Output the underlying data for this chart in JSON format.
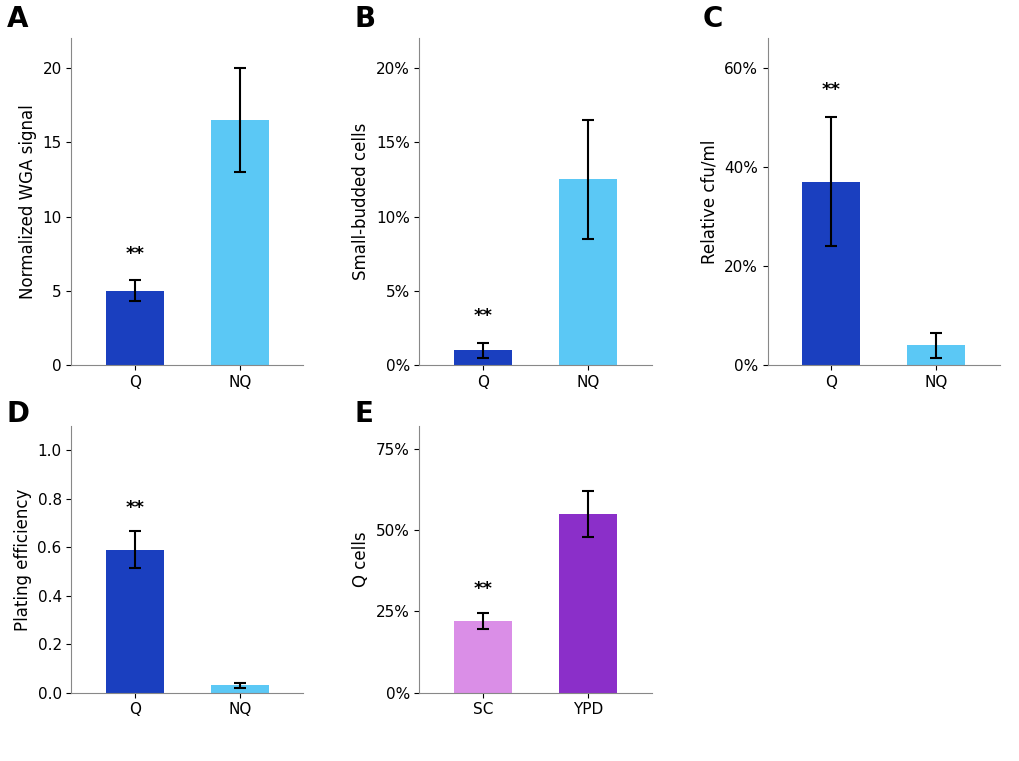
{
  "panel_A": {
    "title": "A",
    "categories": [
      "Q",
      "NQ"
    ],
    "values": [
      5.0,
      16.5
    ],
    "errors": [
      0.7,
      3.5
    ],
    "colors": [
      "#1a3fbf",
      "#5bc8f5"
    ],
    "ylabel": "Normalized WGA signal",
    "ylim": [
      0,
      22
    ],
    "yticks": [
      0,
      5,
      10,
      15,
      20
    ],
    "yticklabels": [
      "0",
      "5",
      "10",
      "15",
      "20"
    ],
    "star_bar": 0
  },
  "panel_B": {
    "title": "B",
    "categories": [
      "Q",
      "NQ"
    ],
    "values": [
      0.01,
      0.125
    ],
    "errors": [
      0.005,
      0.04
    ],
    "colors": [
      "#1a3fbf",
      "#5bc8f5"
    ],
    "ylabel": "Small-budded cells",
    "ylim": [
      0,
      0.22
    ],
    "yticks": [
      0.0,
      0.05,
      0.1,
      0.15,
      0.2
    ],
    "yticklabels": [
      "0%",
      "5%",
      "10%",
      "15%",
      "20%"
    ],
    "star_bar": 0
  },
  "panel_C": {
    "title": "C",
    "categories": [
      "Q",
      "NQ"
    ],
    "values": [
      0.37,
      0.04
    ],
    "errors": [
      0.13,
      0.025
    ],
    "colors": [
      "#1a3fbf",
      "#5bc8f5"
    ],
    "ylabel": "Relative cfu/ml",
    "ylim": [
      0,
      0.66
    ],
    "yticks": [
      0.0,
      0.2,
      0.4,
      0.6
    ],
    "yticklabels": [
      "0%",
      "20%",
      "40%",
      "60%"
    ],
    "star_bar": 0
  },
  "panel_D": {
    "title": "D",
    "categories": [
      "Q",
      "NQ"
    ],
    "values": [
      0.59,
      0.03
    ],
    "errors": [
      0.075,
      0.01
    ],
    "colors": [
      "#1a3fbf",
      "#5bc8f5"
    ],
    "ylabel": "Plating efficiency",
    "ylim": [
      0,
      1.1
    ],
    "yticks": [
      0.0,
      0.2,
      0.4,
      0.6,
      0.8,
      1.0
    ],
    "yticklabels": [
      "0.0",
      "0.2",
      "0.4",
      "0.6",
      "0.8",
      "1.0"
    ],
    "star_bar": 0
  },
  "panel_E": {
    "title": "E",
    "categories": [
      "SC",
      "YPD"
    ],
    "values": [
      0.22,
      0.55
    ],
    "errors": [
      0.025,
      0.07
    ],
    "colors": [
      "#da8ee7",
      "#8b2fc9"
    ],
    "ylabel": "Q cells",
    "ylim": [
      0,
      0.82
    ],
    "yticks": [
      0.0,
      0.25,
      0.5,
      0.75
    ],
    "yticklabels": [
      "0%",
      "25%",
      "50%",
      "75%"
    ],
    "star_bar": 0
  }
}
